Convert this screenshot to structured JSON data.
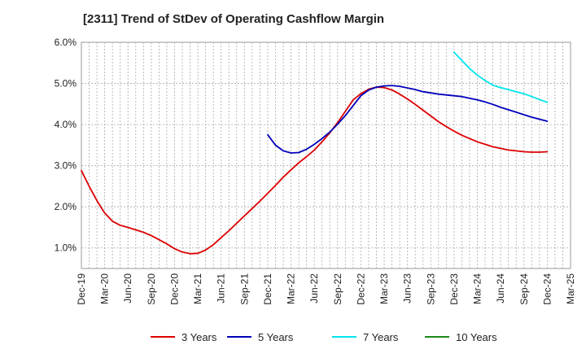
{
  "chart_data": {
    "type": "line",
    "title": "[2311]  Trend of StDev of Operating Cashflow Margin",
    "xlabel": "",
    "ylabel": "",
    "x_tick_labels": [
      "Dec-19",
      "Mar-20",
      "Jun-20",
      "Sep-20",
      "Dec-20",
      "Mar-21",
      "Jun-21",
      "Sep-21",
      "Dec-21",
      "Mar-22",
      "Jun-22",
      "Sep-22",
      "Dec-22",
      "Mar-23",
      "Jun-23",
      "Sep-23",
      "Dec-23",
      "Mar-24",
      "Jun-24",
      "Sep-24",
      "Dec-24",
      "Mar-25"
    ],
    "y_tick_labels": [
      "1.0%",
      "2.0%",
      "3.0%",
      "4.0%",
      "5.0%",
      "6.0%"
    ],
    "y_tick_values": [
      1.0,
      2.0,
      3.0,
      4.0,
      5.0,
      6.0
    ],
    "ylim": [
      0.5,
      6.0
    ],
    "x_range": [
      "Dec-19",
      "Mar-25"
    ],
    "grid": true,
    "legend_position": "bottom",
    "series": [
      {
        "name": "3 Years",
        "color": "#dd0000",
        "x": [
          "Dec-19",
          "Jan-20",
          "Feb-20",
          "Mar-20",
          "Apr-20",
          "May-20",
          "Jun-20",
          "Jul-20",
          "Aug-20",
          "Sep-20",
          "Oct-20",
          "Nov-20",
          "Dec-20",
          "Jan-21",
          "Feb-21",
          "Mar-21",
          "Apr-21",
          "May-21",
          "Jun-21",
          "Jul-21",
          "Aug-21",
          "Sep-21",
          "Oct-21",
          "Nov-21",
          "Dec-21",
          "Jan-22",
          "Feb-22",
          "Mar-22",
          "Apr-22",
          "May-22",
          "Jun-22",
          "Jul-22",
          "Aug-22",
          "Sep-22",
          "Oct-22",
          "Nov-22",
          "Dec-22",
          "Jan-23",
          "Feb-23",
          "Mar-23",
          "Apr-23",
          "May-23",
          "Jun-23",
          "Jul-23",
          "Aug-23",
          "Sep-23",
          "Oct-23",
          "Nov-23",
          "Dec-23",
          "Jan-24",
          "Feb-24",
          "Mar-24",
          "Apr-24",
          "May-24",
          "Jun-24",
          "Jul-24",
          "Aug-24",
          "Sep-24",
          "Oct-24",
          "Nov-24",
          "Dec-24"
        ],
        "values": [
          2.88,
          2.5,
          2.15,
          1.85,
          1.65,
          1.55,
          1.5,
          1.44,
          1.38,
          1.3,
          1.2,
          1.1,
          0.98,
          0.9,
          0.86,
          0.87,
          0.95,
          1.08,
          1.25,
          1.42,
          1.6,
          1.78,
          1.96,
          2.14,
          2.33,
          2.52,
          2.72,
          2.9,
          3.07,
          3.22,
          3.38,
          3.58,
          3.8,
          4.05,
          4.32,
          4.6,
          4.75,
          4.86,
          4.91,
          4.9,
          4.84,
          4.74,
          4.62,
          4.49,
          4.35,
          4.21,
          4.07,
          3.95,
          3.84,
          3.74,
          3.66,
          3.58,
          3.52,
          3.46,
          3.42,
          3.38,
          3.36,
          3.34,
          3.33,
          3.33,
          3.34
        ]
      },
      {
        "name": "5 Years",
        "color": "#0000bb",
        "x": [
          "Dec-21",
          "Jan-22",
          "Feb-22",
          "Mar-22",
          "Apr-22",
          "May-22",
          "Jun-22",
          "Jul-22",
          "Aug-22",
          "Sep-22",
          "Oct-22",
          "Nov-22",
          "Dec-22",
          "Jan-23",
          "Feb-23",
          "Mar-23",
          "Apr-23",
          "May-23",
          "Jun-23",
          "Jul-23",
          "Aug-23",
          "Sep-23",
          "Oct-23",
          "Nov-23",
          "Dec-23",
          "Jan-24",
          "Feb-24",
          "Mar-24",
          "Apr-24",
          "May-24",
          "Jun-24",
          "Jul-24",
          "Aug-24",
          "Sep-24",
          "Oct-24",
          "Nov-24",
          "Dec-24"
        ],
        "values": [
          3.75,
          3.5,
          3.36,
          3.31,
          3.32,
          3.4,
          3.52,
          3.66,
          3.82,
          4.01,
          4.22,
          4.46,
          4.7,
          4.84,
          4.91,
          4.94,
          4.95,
          4.93,
          4.89,
          4.85,
          4.8,
          4.77,
          4.74,
          4.72,
          4.7,
          4.68,
          4.64,
          4.6,
          4.55,
          4.49,
          4.42,
          4.36,
          4.3,
          4.24,
          4.18,
          4.13,
          4.08
        ]
      },
      {
        "name": "7 Years",
        "color": "#00e5ee",
        "x": [
          "Dec-23",
          "Jan-24",
          "Feb-24",
          "Mar-24",
          "Apr-24",
          "May-24",
          "Jun-24",
          "Jul-24",
          "Aug-24",
          "Sep-24",
          "Oct-24",
          "Nov-24",
          "Dec-24"
        ],
        "values": [
          5.76,
          5.56,
          5.36,
          5.2,
          5.07,
          4.96,
          4.9,
          4.85,
          4.8,
          4.75,
          4.68,
          4.61,
          4.54
        ]
      },
      {
        "name": "10 Years",
        "color": "#1a8a1a",
        "x": [],
        "values": []
      }
    ]
  }
}
